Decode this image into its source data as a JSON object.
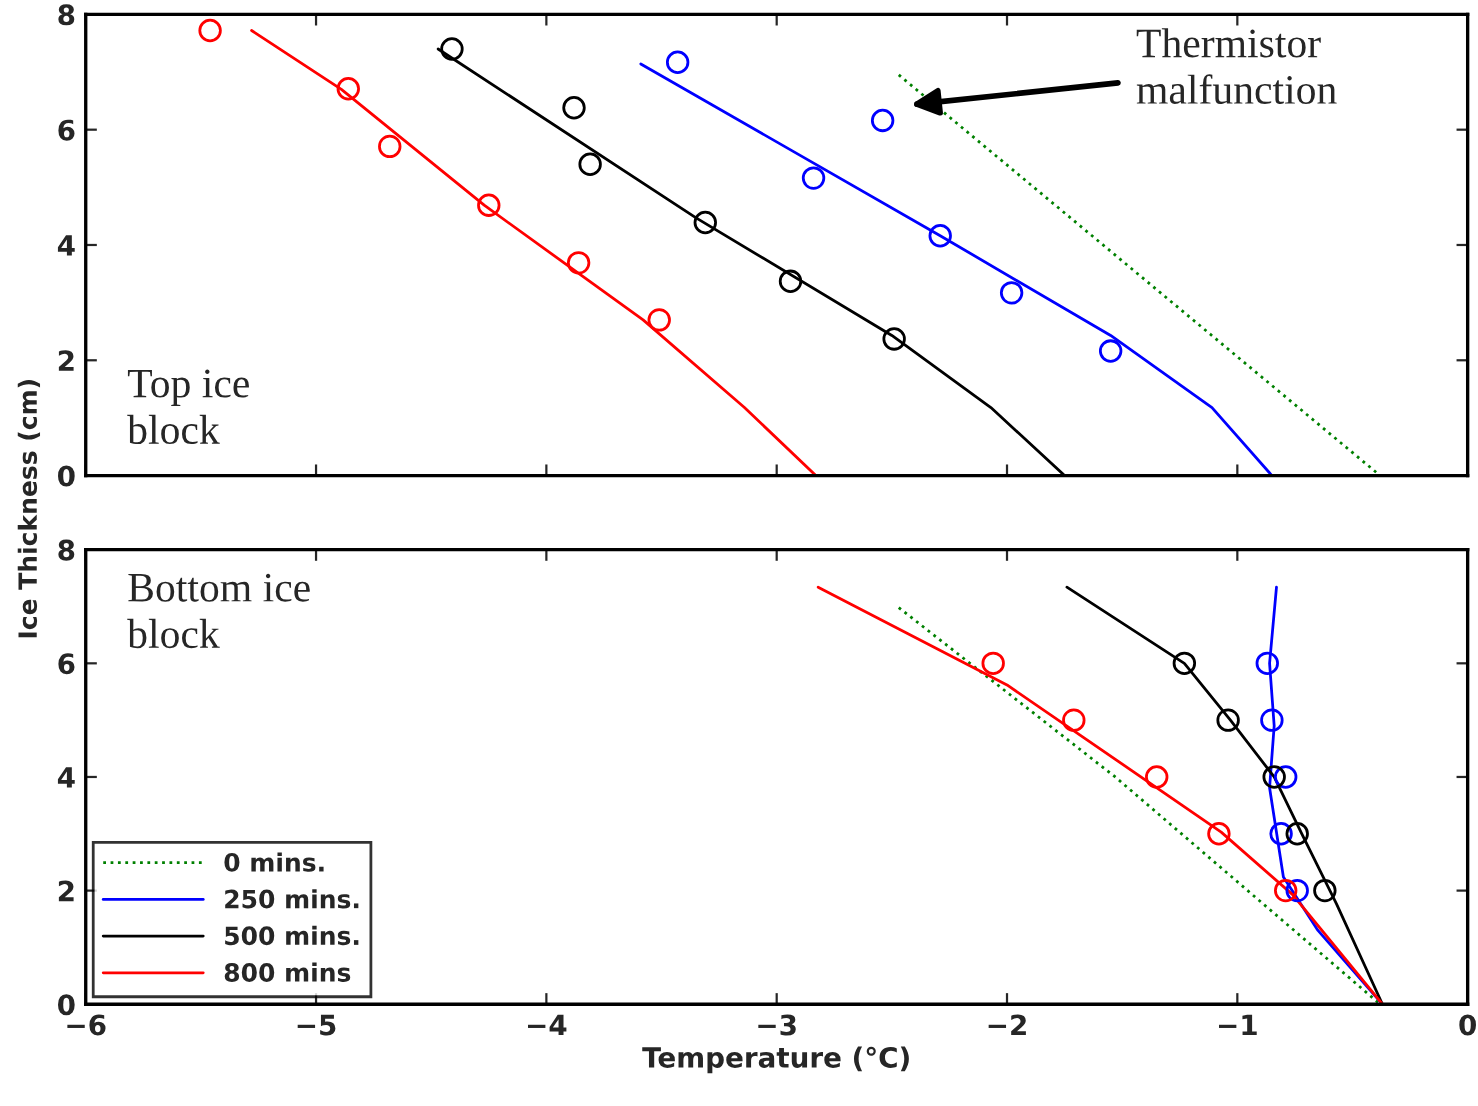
{
  "chart_data": [
    {
      "type": "line",
      "xlim": [
        -6,
        0
      ],
      "ylim": [
        0,
        8
      ],
      "yticks": [
        0,
        2,
        4,
        6,
        8
      ],
      "xticks": [
        -6,
        -5,
        -4,
        -3,
        -2,
        -1,
        0
      ],
      "tick_labels": "y",
      "grid": false,
      "legend": false,
      "annotations": [
        "Top ice block",
        "Thermistor malfunction"
      ],
      "series": [
        {
          "type": "line",
          "color": "#008000",
          "line_style": "dotted",
          "x": [
            -2.47,
            -0.38
          ],
          "values": [
            6.95,
            0
          ]
        },
        {
          "type": "line",
          "color": "#0000ff",
          "line_style": "solid",
          "x": [
            -3.59,
            -2.29,
            -1.55,
            -1.11,
            -0.85
          ],
          "values": [
            7.14,
            4.16,
            2.43,
            1.18,
            0
          ]
        },
        {
          "type": "line",
          "color": "#000000",
          "line_style": "solid",
          "x": [
            -4.47,
            -3.35,
            -2.5,
            -2.07,
            -1.75
          ],
          "values": [
            7.4,
            4.47,
            2.43,
            1.18,
            0
          ]
        },
        {
          "type": "line",
          "color": "#ff0000",
          "line_style": "solid",
          "x": [
            -5.28,
            -4.89,
            -4.27,
            -3.58,
            -3.14,
            -2.83
          ],
          "values": [
            7.72,
            6.7,
            4.69,
            2.7,
            1.18,
            0
          ]
        },
        {
          "type": "scatter",
          "color": "#0000ff",
          "marker": "circle",
          "x": [
            -3.43,
            -2.54,
            -2.84,
            -2.29,
            -1.98,
            -1.55
          ],
          "values": [
            7.17,
            6.16,
            5.16,
            4.16,
            3.17,
            2.16
          ]
        },
        {
          "type": "scatter",
          "color": "#000000",
          "marker": "circle",
          "x": [
            -4.41,
            -3.88,
            -3.81,
            -3.31,
            -2.94,
            -2.49
          ],
          "values": [
            7.4,
            6.38,
            5.4,
            4.39,
            3.37,
            2.37
          ]
        },
        {
          "type": "scatter",
          "color": "#ff0000",
          "marker": "circle",
          "x": [
            -5.46,
            -4.86,
            -4.68,
            -4.25,
            -3.86,
            -3.51
          ],
          "values": [
            7.72,
            6.71,
            5.71,
            4.69,
            3.69,
            2.7
          ]
        }
      ]
    },
    {
      "type": "line",
      "xlim": [
        -6,
        0
      ],
      "ylim": [
        0,
        8
      ],
      "yticks": [
        0,
        2,
        4,
        6,
        8
      ],
      "xticks": [
        -6,
        -5,
        -4,
        -3,
        -2,
        -1,
        0
      ],
      "grid": false,
      "legend": "bottom left",
      "xlabel": "Temperature (°C)",
      "ylabel": "Ice Thickness (cm)",
      "annotations": [
        "Bottom ice block"
      ],
      "series": [
        {
          "type": "line",
          "name": "0 mins.",
          "color": "#008000",
          "line_style": "dotted",
          "x": [
            -2.47,
            -1.53,
            -0.38
          ],
          "values": [
            6.98,
            4.0,
            0
          ]
        },
        {
          "type": "line",
          "name": "250 mins.",
          "color": "#0000ff",
          "line_style": "solid",
          "x": [
            -0.83,
            -0.86,
            -0.84,
            -0.86,
            -0.8,
            -0.65,
            -0.37
          ],
          "values": [
            7.34,
            6.0,
            4.9,
            3.81,
            2.24,
            1.3,
            0
          ]
        },
        {
          "type": "line",
          "name": "500 mins.",
          "color": "#000000",
          "line_style": "solid",
          "x": [
            -1.74,
            -1.23,
            -1.03,
            -0.84,
            -0.72,
            -0.57,
            -0.37
          ],
          "values": [
            7.34,
            6.0,
            5.0,
            4.0,
            3.0,
            1.77,
            0
          ]
        },
        {
          "type": "line",
          "name": "800 mins",
          "color": "#ff0000",
          "line_style": "solid",
          "x": [
            -2.82,
            -2.0,
            -1.07,
            -0.76,
            -0.37
          ],
          "values": [
            7.34,
            5.62,
            3.03,
            1.93,
            0
          ]
        },
        {
          "type": "scatter",
          "color": "#0000ff",
          "marker": "circle",
          "x": [
            -0.87,
            -0.85,
            -0.79,
            -0.81,
            -0.74
          ],
          "values": [
            6,
            5,
            4,
            3,
            2
          ]
        },
        {
          "type": "scatter",
          "color": "#000000",
          "marker": "circle",
          "x": [
            -1.23,
            -1.04,
            -0.84,
            -0.74,
            -0.62
          ],
          "values": [
            6,
            5,
            4,
            3,
            2
          ]
        },
        {
          "type": "scatter",
          "color": "#ff0000",
          "marker": "circle",
          "x": [
            -2.06,
            -1.71,
            -1.35,
            -1.08,
            -0.79
          ],
          "values": [
            6,
            5,
            4,
            3,
            2
          ]
        }
      ]
    }
  ]
}
